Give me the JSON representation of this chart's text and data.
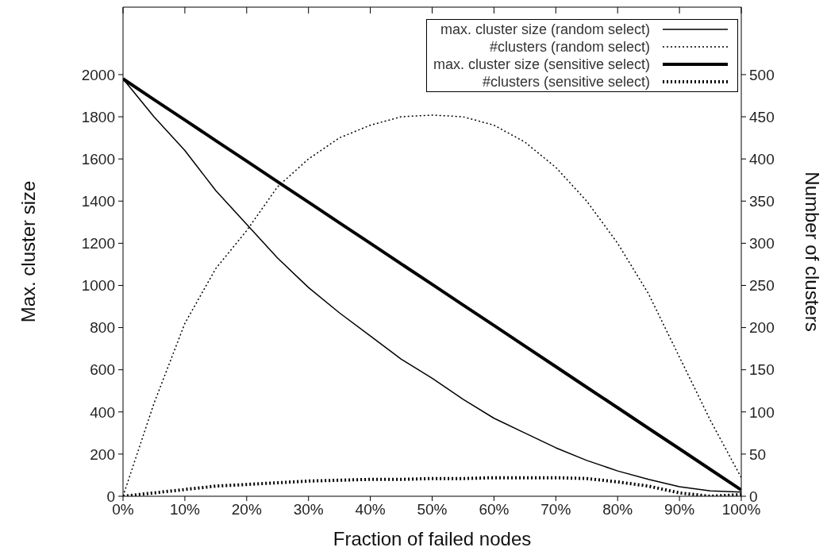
{
  "chart_data": {
    "type": "line",
    "xlabel": "Fraction of failed nodes",
    "ylabel": "Max. cluster size",
    "y2label": "Number of clusters",
    "x": [
      0,
      5,
      10,
      15,
      20,
      25,
      30,
      35,
      40,
      45,
      50,
      55,
      60,
      65,
      70,
      75,
      80,
      85,
      90,
      95,
      100
    ],
    "xlim": [
      0,
      100
    ],
    "xticks": [
      {
        "value": 0,
        "label": "0%"
      },
      {
        "value": 10,
        "label": "10%"
      },
      {
        "value": 20,
        "label": "20%"
      },
      {
        "value": 30,
        "label": "30%"
      },
      {
        "value": 40,
        "label": "40%"
      },
      {
        "value": 50,
        "label": "50%"
      },
      {
        "value": 60,
        "label": "60%"
      },
      {
        "value": 70,
        "label": "70%"
      },
      {
        "value": 80,
        "label": "80%"
      },
      {
        "value": 90,
        "label": "90%"
      },
      {
        "value": 100,
        "label": "100%"
      }
    ],
    "ylim": [
      0,
      2320
    ],
    "yticks": [
      0,
      200,
      400,
      600,
      800,
      1000,
      1200,
      1400,
      1600,
      1800,
      2000
    ],
    "y2lim": [
      0,
      580
    ],
    "y2ticks": [
      0,
      50,
      100,
      150,
      200,
      250,
      300,
      350,
      400,
      450,
      500
    ],
    "legend": "top right",
    "grid": false,
    "marker": "none",
    "series": [
      {
        "name": "max. cluster size (random select)",
        "color": "#000000",
        "line_style": "solid",
        "values": [
          1980,
          1800,
          1640,
          1450,
          1290,
          1130,
          990,
          870,
          760,
          650,
          560,
          460,
          370,
          300,
          230,
          170,
          120,
          80,
          45,
          25,
          20
        ]
      },
      {
        "name": "#clusters (random select)",
        "color": "#000000",
        "line_style": "dotted",
        "axis": "y2",
        "values": [
          0,
          110,
          205,
          270,
          315,
          367,
          400,
          425,
          440,
          450,
          452,
          450,
          440,
          420,
          390,
          350,
          300,
          240,
          165,
          90,
          22
        ]
      },
      {
        "name": "max. cluster size (sensitive select)",
        "color": "#000000",
        "line_style": "solid",
        "values": [
          1980,
          1882,
          1785,
          1687,
          1590,
          1492,
          1395,
          1297,
          1200,
          1102,
          1005,
          907,
          810,
          712,
          615,
          517,
          420,
          322,
          225,
          127,
          30
        ]
      },
      {
        "name": "#clusters (sensitive select)",
        "color": "#000000",
        "line_style": "dotted",
        "axis": "y2",
        "values": [
          0,
          4,
          8,
          12,
          14,
          16,
          18,
          19,
          20,
          20,
          21,
          21,
          22,
          22,
          22,
          21,
          17,
          12,
          4,
          0,
          2
        ]
      }
    ]
  }
}
